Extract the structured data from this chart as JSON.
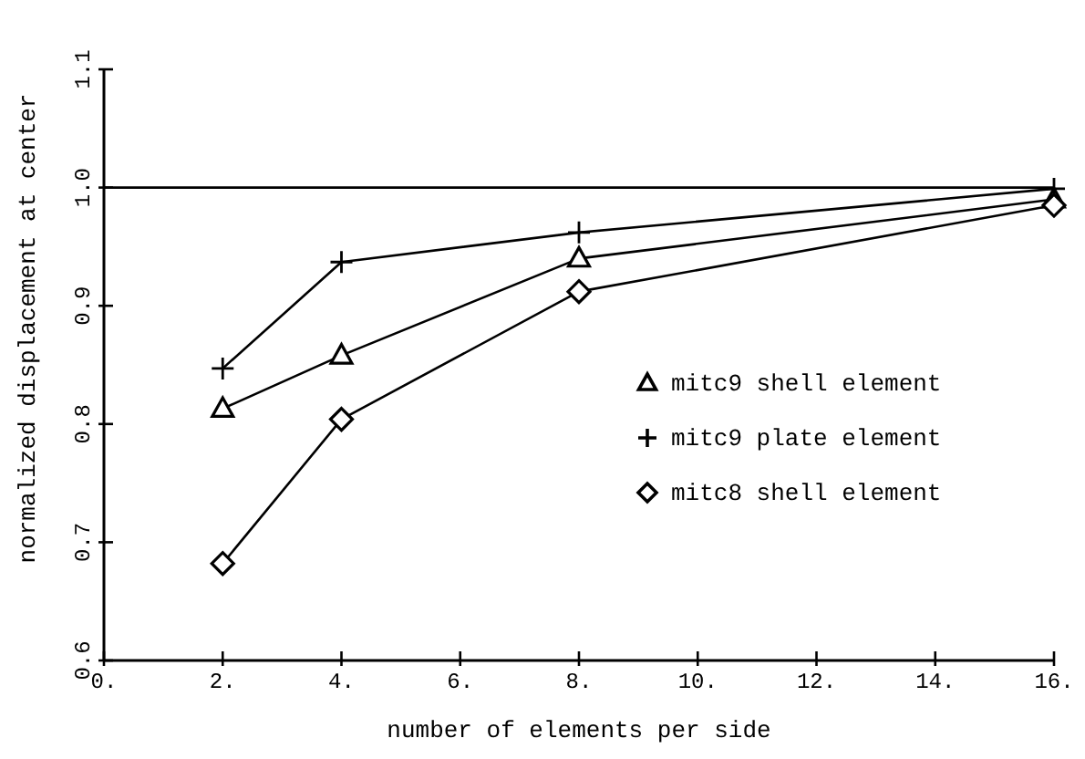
{
  "chart_data": {
    "type": "line",
    "xlabel": "number of elements per side",
    "ylabel": "normalized displacement at center",
    "x": [
      2,
      4,
      8,
      16
    ],
    "series": [
      {
        "name": "mitc9 shell element",
        "color": "#000000",
        "marker": "triangle",
        "values": [
          0.813,
          0.858,
          0.94,
          0.99
        ]
      },
      {
        "name": "mitc9 plate element",
        "color": "#000000",
        "marker": "cross",
        "values": [
          0.847,
          0.937,
          0.962,
          0.999
        ]
      },
      {
        "name": "mitc8 shell element",
        "color": "#000000",
        "marker": "diamond",
        "values": [
          0.682,
          0.804,
          0.912,
          0.985
        ]
      }
    ],
    "xlim": [
      0,
      16
    ],
    "xticks": [
      {
        "value": 0,
        "label": "0."
      },
      {
        "value": 2,
        "label": "2."
      },
      {
        "value": 4,
        "label": "4."
      },
      {
        "value": 6,
        "label": "6."
      },
      {
        "value": 8,
        "label": "8."
      },
      {
        "value": 10,
        "label": "10."
      },
      {
        "value": 12,
        "label": "12."
      },
      {
        "value": 14,
        "label": "14."
      },
      {
        "value": 16,
        "label": "16."
      }
    ],
    "ylim": [
      0.6,
      1.1
    ],
    "yticks": [
      {
        "value": 0.6,
        "label": "0.6"
      },
      {
        "value": 0.7,
        "label": "0.7"
      },
      {
        "value": 0.8,
        "label": "0.8"
      },
      {
        "value": 0.9,
        "label": "0.9"
      },
      {
        "value": 1.0,
        "label": "1.0"
      },
      {
        "value": 1.1,
        "label": "1.1"
      }
    ],
    "ref_lines": [
      {
        "axis": "y",
        "value": 1.0,
        "color": "#000000"
      }
    ],
    "grid": false,
    "legend": "right",
    "line_style": "solid"
  }
}
